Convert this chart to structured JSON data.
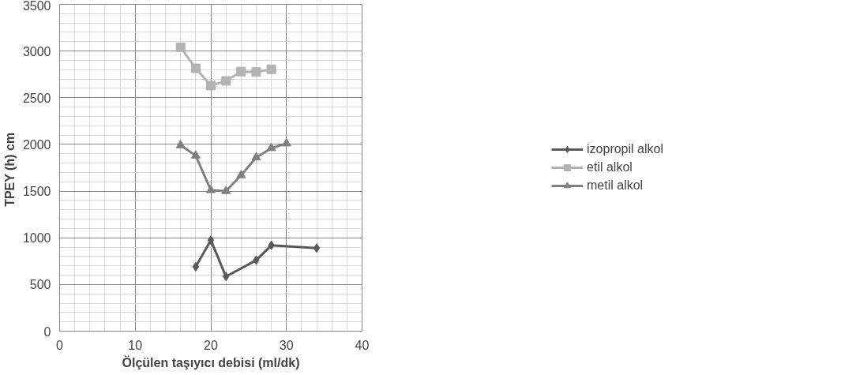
{
  "chart_data": {
    "type": "line",
    "xlabel": "Ölçülen taşıyıcı debisi (ml/dk)",
    "ylabel": "TPEY  (h) cm",
    "xlim": [
      0,
      40
    ],
    "xticks": [
      0,
      10,
      20,
      30,
      40
    ],
    "ylim": [
      0,
      3500
    ],
    "yticks": [
      0,
      500,
      1000,
      1500,
      2000,
      2500,
      3000,
      3500
    ],
    "grid": true,
    "legend": "right",
    "series": [
      {
        "name": "izopropil alkol",
        "color": "#595959",
        "marker": "diamond",
        "x": [
          18,
          20,
          22,
          26,
          28,
          34
        ],
        "values": [
          690,
          975,
          585,
          760,
          920,
          890
        ]
      },
      {
        "name": "etil alkol",
        "color": "#b3b3b3",
        "marker": "square",
        "x": [
          16,
          18,
          20,
          22,
          24,
          26,
          28
        ],
        "values": [
          3040,
          2815,
          2630,
          2680,
          2780,
          2775,
          2805
        ]
      },
      {
        "name": "metil alkol",
        "color": "#808080",
        "marker": "triangle",
        "x": [
          16,
          18,
          20,
          22,
          24,
          26,
          28,
          30
        ],
        "values": [
          1990,
          1880,
          1510,
          1500,
          1670,
          1860,
          1960,
          2010
        ]
      }
    ]
  }
}
